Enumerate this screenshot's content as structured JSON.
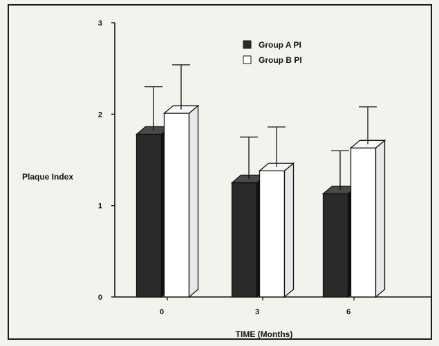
{
  "chart_data": {
    "type": "bar",
    "title": "",
    "xlabel": "TIME (Months)",
    "ylabel": "Plaque Index",
    "categories": [
      "0",
      "3",
      "6"
    ],
    "ylim": [
      0,
      3
    ],
    "yticks": [
      "0",
      "1",
      "2",
      "3"
    ],
    "series": [
      {
        "name": "Group A PI",
        "values": [
          1.78,
          1.25,
          1.13
        ],
        "errors": [
          0.52,
          0.5,
          0.47
        ],
        "color": "#2a2a2a"
      },
      {
        "name": "Group B PI",
        "values": [
          2.01,
          1.38,
          1.63
        ],
        "errors": [
          0.53,
          0.48,
          0.45
        ],
        "color": "#ffffff"
      }
    ],
    "legend_position": "top-right",
    "grid": false,
    "style": "3d-bar"
  }
}
